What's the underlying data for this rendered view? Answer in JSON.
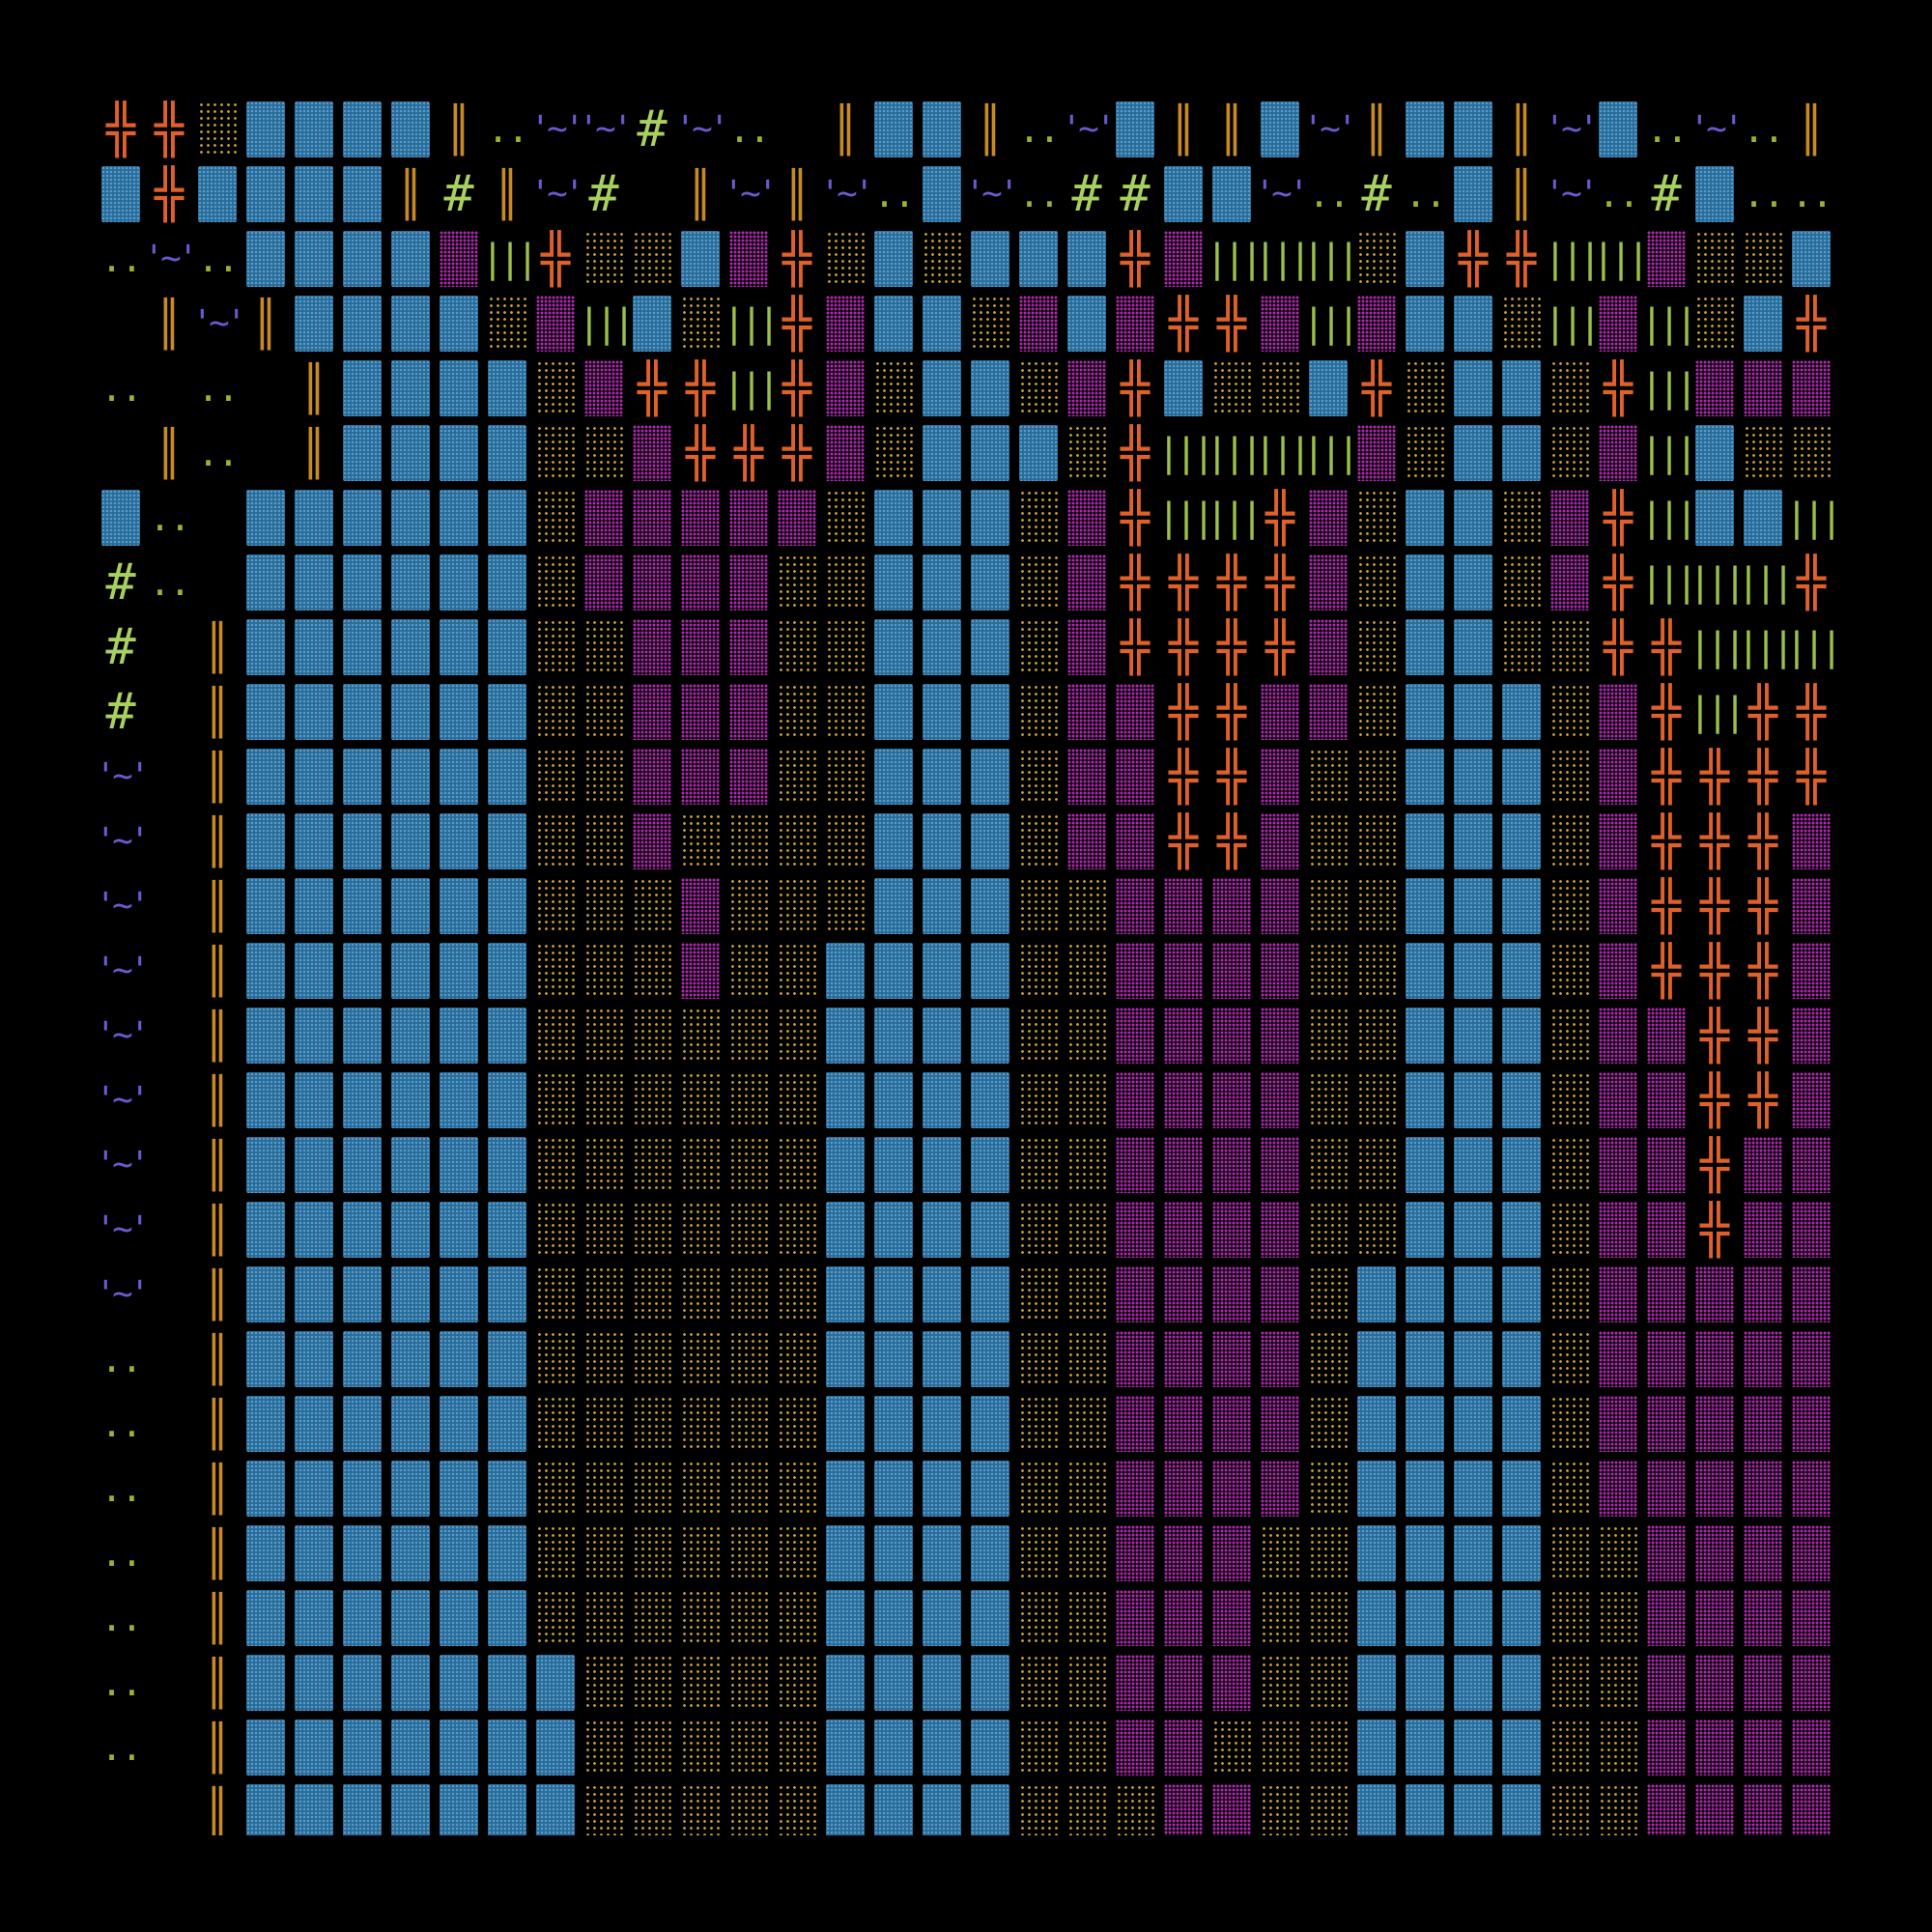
{
  "tile_size": "50x67",
  "legend": {
    "B": {
      "name": "deep-water-tile",
      "glyph": "",
      "color": "#2a6c98"
    },
    "b": {
      "name": "sand-tile",
      "glyph": "",
      "color": "#c9a23a"
    },
    "o": {
      "name": "orange-sand-tile",
      "glyph": "",
      "color": "#d98a2a"
    },
    "m": {
      "name": "magenta-floor-tile",
      "glyph": "",
      "color": "#b02ab0"
    },
    "w": {
      "name": "lava-tile",
      "glyph": "╬",
      "color": "#e0602a"
    },
    "P": {
      "name": "pillar-tile",
      "glyph": "║",
      "color": "#c88a22"
    },
    "g": {
      "name": "grass-tile",
      "glyph": "|||",
      "color": "#9cc04a"
    },
    "h": {
      "name": "hash-tile",
      "glyph": "#",
      "color": "#a8d060"
    },
    "v": {
      "name": "wave-tile",
      "glyph": "'~'",
      "color": "#6a5ad0"
    },
    "d": {
      "name": "dust-tile",
      "glyph": "..",
      "color": "#a0b030"
    },
    "s": {
      "name": "shallow-mark-tile",
      "glyph": "..",
      "color": "#6a5ad0"
    },
    " ": {
      "name": "empty-tile",
      "glyph": "",
      "color": "#000000"
    }
  },
  "map": [
    "wwbBBBBPdvvhvd PBBPdvBPPBvPBBPvBdvdPv",
    "BwBBBBPhPvh PvPvdBvdhhBBvdhdBPvdhBddv",
    "dvdBBBBmgwbbBmwbBbBBBwmgggbBwwggmbbBg",
    " PvPBBBBbmgBbgwmBBbmBmwwmgmBBbgmgbBwgm",
    "d d PBBBBbmwwgwmbBBbmwBbbBwbBBbwgmmmbwb",
    " Pd PBBBBbbmwwwmbBBBbwggggmbBBbmgBbbgwb",
    "Bd BBBBBBbmmmmmbBBBbmwggwmbBBbmwgBBgmb",
    "hd BBBBBBbmmmmbbBBBbmwwwwmbBBbmwgggwmb",
    "h PBBBBBBbbmmmbbBBBbmwwwwmbBBbbwwgggwmb",
    "h PBBBBBBbbmmmbbBBBbmmwwmmbBBBbmwgwwmb",
    "v PBBBBBBbbmmmbbBBBbmmwwmbbBBBbmwwwwmb",
    "v PBBBBBBbbmbbbbBBBbmmwwmbbBBBbmwwwmbb",
    "v PBBBBBBbbbmbbbBBBbbmmmmbbBBBbmwwwmbb",
    "v PBBBBBBbbbmbbBBBBbbmmmmbbBBBbmwwwmbb",
    "v PBBBBBBbbbbbbBBBBbbmmmmbbBBBbmmwwmbb",
    "v PBBBBBBbbbbbbBBBBbbmmmmbbBBBbmmwwmbb",
    "v PBBBBBBbbbbbbBBBBbbmmmmbbBBBbmmwmmbB",
    "v PBBBBBBbbbbbbBBBBbbmmmmbbBBBbmmwmmbB",
    "v PBBBBBBbbbbbbBBBBbbmmmmbBBBBbmmmmmbB",
    "d PBBBBBBbbbbbbBBBBbbmmmmbBBBBbmmmmmbB",
    "d PBBBBBBbbbbbbBBBBbbmmmmbBBBBbmmmmmbB",
    "d PBBBBBBbbbbbbBBBBbbmmmmbBBBBbmmmmmbB",
    "d PBBBBBBbbbbbbBBBBbbmmmbbBBBBbbmmmmbB",
    "d PBBBBBBbbbbbbBBBBbbmmmbbBBBBbbmmmmbB",
    "d PBBBBBBBbbbbbBBBBbbmmmbbBBBBbbmmmmbB",
    "d PBBBBBBBbbbbbBBBBbbmmbbbBBBBbbmmmmbB",
    "  PBBBBBBBbbbbbBBBBbbbmmbbBBBBbbmmmmbB"
  ]
}
